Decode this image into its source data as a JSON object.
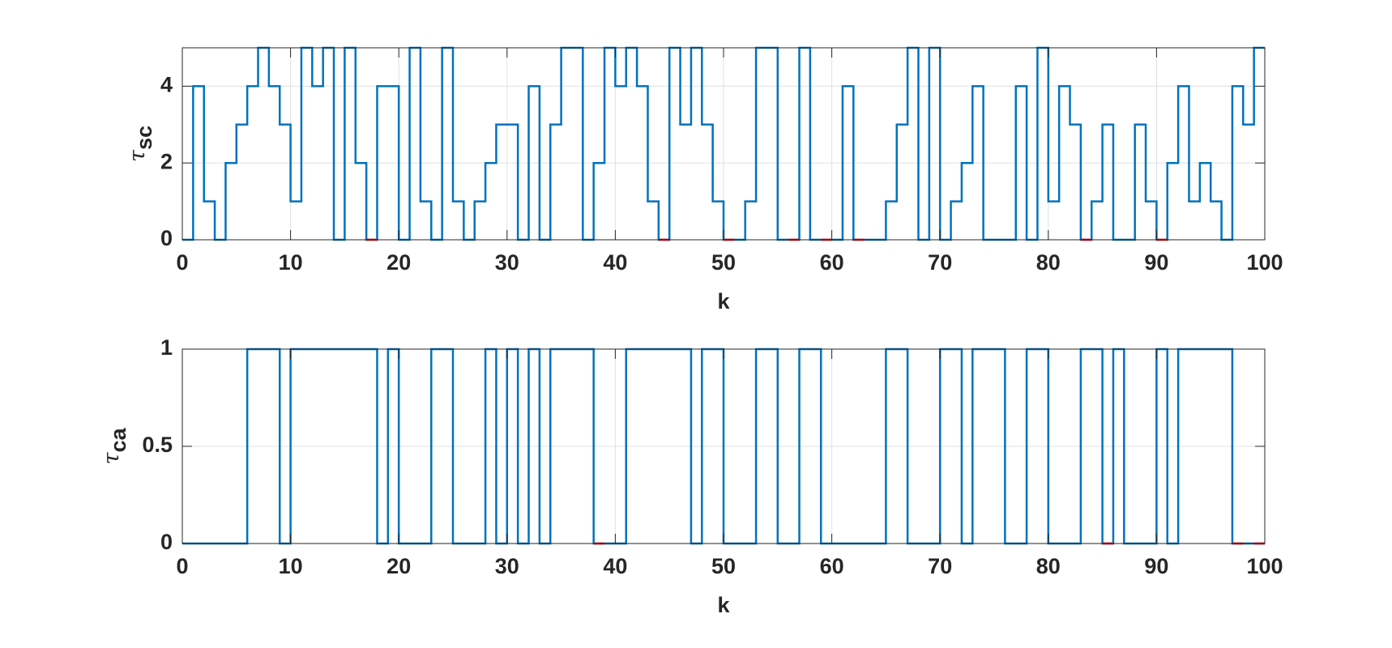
{
  "chart_data": [
    {
      "type": "stairs",
      "ylabel": "τ",
      "ylabel_subscript": "sc",
      "xlabel": "k",
      "xlim": [
        0,
        100
      ],
      "xticks": [
        0,
        10,
        20,
        30,
        40,
        50,
        60,
        70,
        80,
        90,
        100
      ],
      "ylim": [
        0,
        5
      ],
      "yticks": [
        0,
        2,
        4
      ],
      "grid": true,
      "series": [
        {
          "color": "#0072bd",
          "values": [
            0,
            4,
            1,
            0,
            2,
            3,
            4,
            5,
            4,
            3,
            1,
            5,
            4,
            5,
            0,
            5,
            2,
            0,
            4,
            4,
            0,
            5,
            1,
            0,
            5,
            1,
            0,
            1,
            2,
            3,
            3,
            0,
            4,
            0,
            3,
            5,
            5,
            0,
            2,
            5,
            4,
            5,
            4,
            1,
            0,
            5,
            3,
            5,
            3,
            1,
            0,
            0,
            1,
            5,
            5,
            0,
            0,
            5,
            0,
            0,
            0,
            4,
            0,
            0,
            0,
            1,
            3,
            5,
            0,
            5,
            0,
            1,
            2,
            4,
            0,
            0,
            0,
            4,
            0,
            5,
            1,
            4,
            3,
            0,
            1,
            3,
            0,
            0,
            3,
            1,
            0,
            2,
            4,
            1,
            2,
            1,
            0,
            4,
            3,
            5
          ]
        },
        {
          "color": "#ff0000",
          "values": [
            null,
            null,
            null,
            null,
            null,
            null,
            null,
            null,
            null,
            null,
            null,
            null,
            null,
            null,
            null,
            null,
            null,
            0,
            null,
            null,
            null,
            null,
            null,
            null,
            null,
            null,
            null,
            null,
            null,
            null,
            null,
            null,
            null,
            null,
            null,
            null,
            null,
            null,
            null,
            null,
            null,
            null,
            null,
            null,
            0,
            null,
            null,
            null,
            null,
            null,
            0,
            null,
            null,
            null,
            null,
            null,
            0,
            null,
            null,
            0,
            null,
            null,
            0,
            null,
            null,
            null,
            null,
            null,
            null,
            null,
            null,
            null,
            null,
            null,
            null,
            null,
            null,
            null,
            null,
            null,
            null,
            null,
            null,
            0,
            null,
            null,
            null,
            null,
            null,
            null,
            0,
            null,
            null,
            null,
            null,
            null,
            null,
            null,
            null,
            null
          ]
        }
      ]
    },
    {
      "type": "stairs",
      "ylabel": "τ",
      "ylabel_subscript": "ca",
      "xlabel": "k",
      "xlim": [
        0,
        100
      ],
      "xticks": [
        0,
        10,
        20,
        30,
        40,
        50,
        60,
        70,
        80,
        90,
        100
      ],
      "ylim": [
        0,
        1
      ],
      "yticks": [
        0,
        0.5,
        1
      ],
      "grid": true,
      "series": [
        {
          "color": "#0072bd",
          "values": [
            0,
            0,
            0,
            0,
            0,
            0,
            1,
            1,
            1,
            0,
            1,
            1,
            1,
            1,
            1,
            1,
            1,
            1,
            0,
            1,
            0,
            0,
            0,
            1,
            1,
            0,
            0,
            0,
            1,
            0,
            1,
            0,
            1,
            0,
            1,
            1,
            1,
            1,
            0,
            0,
            0,
            1,
            1,
            1,
            1,
            1,
            1,
            0,
            1,
            1,
            0,
            0,
            0,
            1,
            1,
            0,
            0,
            1,
            1,
            0,
            0,
            0,
            0,
            0,
            0,
            1,
            1,
            0,
            0,
            0,
            1,
            1,
            0,
            1,
            1,
            1,
            0,
            0,
            1,
            1,
            0,
            0,
            0,
            1,
            1,
            0,
            1,
            0,
            0,
            0,
            1,
            0,
            1,
            1,
            1,
            1,
            1,
            0,
            0,
            0
          ]
        },
        {
          "color": "#ff0000",
          "values": [
            null,
            null,
            null,
            null,
            null,
            null,
            null,
            null,
            null,
            null,
            null,
            null,
            null,
            null,
            null,
            null,
            null,
            null,
            null,
            null,
            null,
            null,
            null,
            null,
            null,
            null,
            null,
            null,
            null,
            null,
            null,
            null,
            null,
            null,
            null,
            null,
            null,
            null,
            0,
            null,
            null,
            null,
            null,
            null,
            null,
            null,
            null,
            null,
            null,
            null,
            null,
            null,
            null,
            null,
            null,
            null,
            null,
            null,
            null,
            null,
            null,
            null,
            null,
            null,
            null,
            null,
            null,
            null,
            null,
            null,
            null,
            null,
            null,
            null,
            null,
            null,
            null,
            null,
            null,
            null,
            null,
            null,
            null,
            null,
            null,
            0,
            null,
            null,
            null,
            null,
            null,
            null,
            null,
            null,
            null,
            null,
            null,
            0,
            null,
            0
          ]
        }
      ]
    }
  ]
}
